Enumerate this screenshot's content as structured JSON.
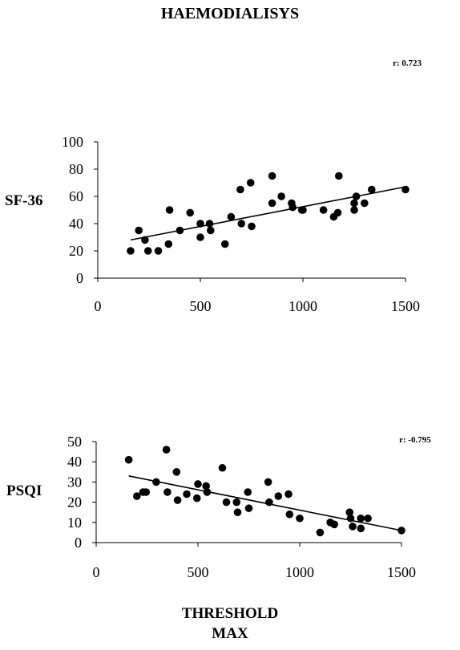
{
  "page_title": "HAEMODIALISYS",
  "x_label_line1": "THRESHOLD",
  "x_label_line2": "MAX",
  "chart_data": [
    {
      "type": "scatter",
      "ylabel": "SF-36",
      "annotation": "r: 0.723",
      "xlim": [
        0,
        1500
      ],
      "ylim": [
        0,
        100
      ],
      "xticks": [
        "0",
        "500",
        "1000",
        "1500"
      ],
      "yticks": [
        "0",
        "20",
        "40",
        "60",
        "80",
        "100"
      ],
      "grid": false,
      "trendline": {
        "x": [
          160,
          1500
        ],
        "y": [
          28,
          67
        ]
      },
      "points": [
        {
          "x": 160,
          "y": 20
        },
        {
          "x": 200,
          "y": 35
        },
        {
          "x": 230,
          "y": 28
        },
        {
          "x": 245,
          "y": 20
        },
        {
          "x": 295,
          "y": 20
        },
        {
          "x": 345,
          "y": 25
        },
        {
          "x": 350,
          "y": 50
        },
        {
          "x": 400,
          "y": 35
        },
        {
          "x": 450,
          "y": 48
        },
        {
          "x": 500,
          "y": 40
        },
        {
          "x": 500,
          "y": 30
        },
        {
          "x": 545,
          "y": 40
        },
        {
          "x": 550,
          "y": 35
        },
        {
          "x": 620,
          "y": 25
        },
        {
          "x": 650,
          "y": 45
        },
        {
          "x": 695,
          "y": 65
        },
        {
          "x": 700,
          "y": 40
        },
        {
          "x": 745,
          "y": 70
        },
        {
          "x": 750,
          "y": 38
        },
        {
          "x": 850,
          "y": 75
        },
        {
          "x": 850,
          "y": 55
        },
        {
          "x": 895,
          "y": 60
        },
        {
          "x": 945,
          "y": 55
        },
        {
          "x": 950,
          "y": 52
        },
        {
          "x": 995,
          "y": 50
        },
        {
          "x": 1000,
          "y": 50
        },
        {
          "x": 1100,
          "y": 50
        },
        {
          "x": 1150,
          "y": 45
        },
        {
          "x": 1170,
          "y": 48
        },
        {
          "x": 1175,
          "y": 75
        },
        {
          "x": 1250,
          "y": 50
        },
        {
          "x": 1250,
          "y": 55
        },
        {
          "x": 1260,
          "y": 60
        },
        {
          "x": 1300,
          "y": 55
        },
        {
          "x": 1335,
          "y": 65
        },
        {
          "x": 1500,
          "y": 65
        }
      ]
    },
    {
      "type": "scatter",
      "ylabel": "PSQI",
      "annotation": "r: -0.795",
      "xlim": [
        0,
        1500
      ],
      "ylim": [
        0,
        50
      ],
      "xticks": [
        "0",
        "500",
        "1000",
        "1500"
      ],
      "yticks": [
        "0",
        "10",
        "20",
        "30",
        "40",
        "50"
      ],
      "grid": false,
      "trendline": {
        "x": [
          160,
          1500
        ],
        "y": [
          33,
          6
        ]
      },
      "points": [
        {
          "x": 160,
          "y": 41
        },
        {
          "x": 200,
          "y": 23
        },
        {
          "x": 230,
          "y": 25
        },
        {
          "x": 245,
          "y": 25
        },
        {
          "x": 295,
          "y": 30
        },
        {
          "x": 345,
          "y": 46
        },
        {
          "x": 350,
          "y": 25
        },
        {
          "x": 395,
          "y": 35
        },
        {
          "x": 400,
          "y": 21
        },
        {
          "x": 445,
          "y": 24
        },
        {
          "x": 495,
          "y": 22
        },
        {
          "x": 500,
          "y": 29
        },
        {
          "x": 540,
          "y": 28
        },
        {
          "x": 545,
          "y": 25
        },
        {
          "x": 620,
          "y": 37
        },
        {
          "x": 640,
          "y": 20
        },
        {
          "x": 690,
          "y": 20
        },
        {
          "x": 695,
          "y": 15
        },
        {
          "x": 745,
          "y": 25
        },
        {
          "x": 750,
          "y": 17
        },
        {
          "x": 845,
          "y": 30
        },
        {
          "x": 850,
          "y": 20
        },
        {
          "x": 895,
          "y": 23
        },
        {
          "x": 945,
          "y": 24
        },
        {
          "x": 950,
          "y": 14
        },
        {
          "x": 1000,
          "y": 12
        },
        {
          "x": 1100,
          "y": 5
        },
        {
          "x": 1150,
          "y": 10
        },
        {
          "x": 1170,
          "y": 9
        },
        {
          "x": 1245,
          "y": 15
        },
        {
          "x": 1250,
          "y": 12
        },
        {
          "x": 1260,
          "y": 8
        },
        {
          "x": 1300,
          "y": 7
        },
        {
          "x": 1300,
          "y": 12
        },
        {
          "x": 1335,
          "y": 12
        },
        {
          "x": 1500,
          "y": 6
        }
      ]
    }
  ]
}
